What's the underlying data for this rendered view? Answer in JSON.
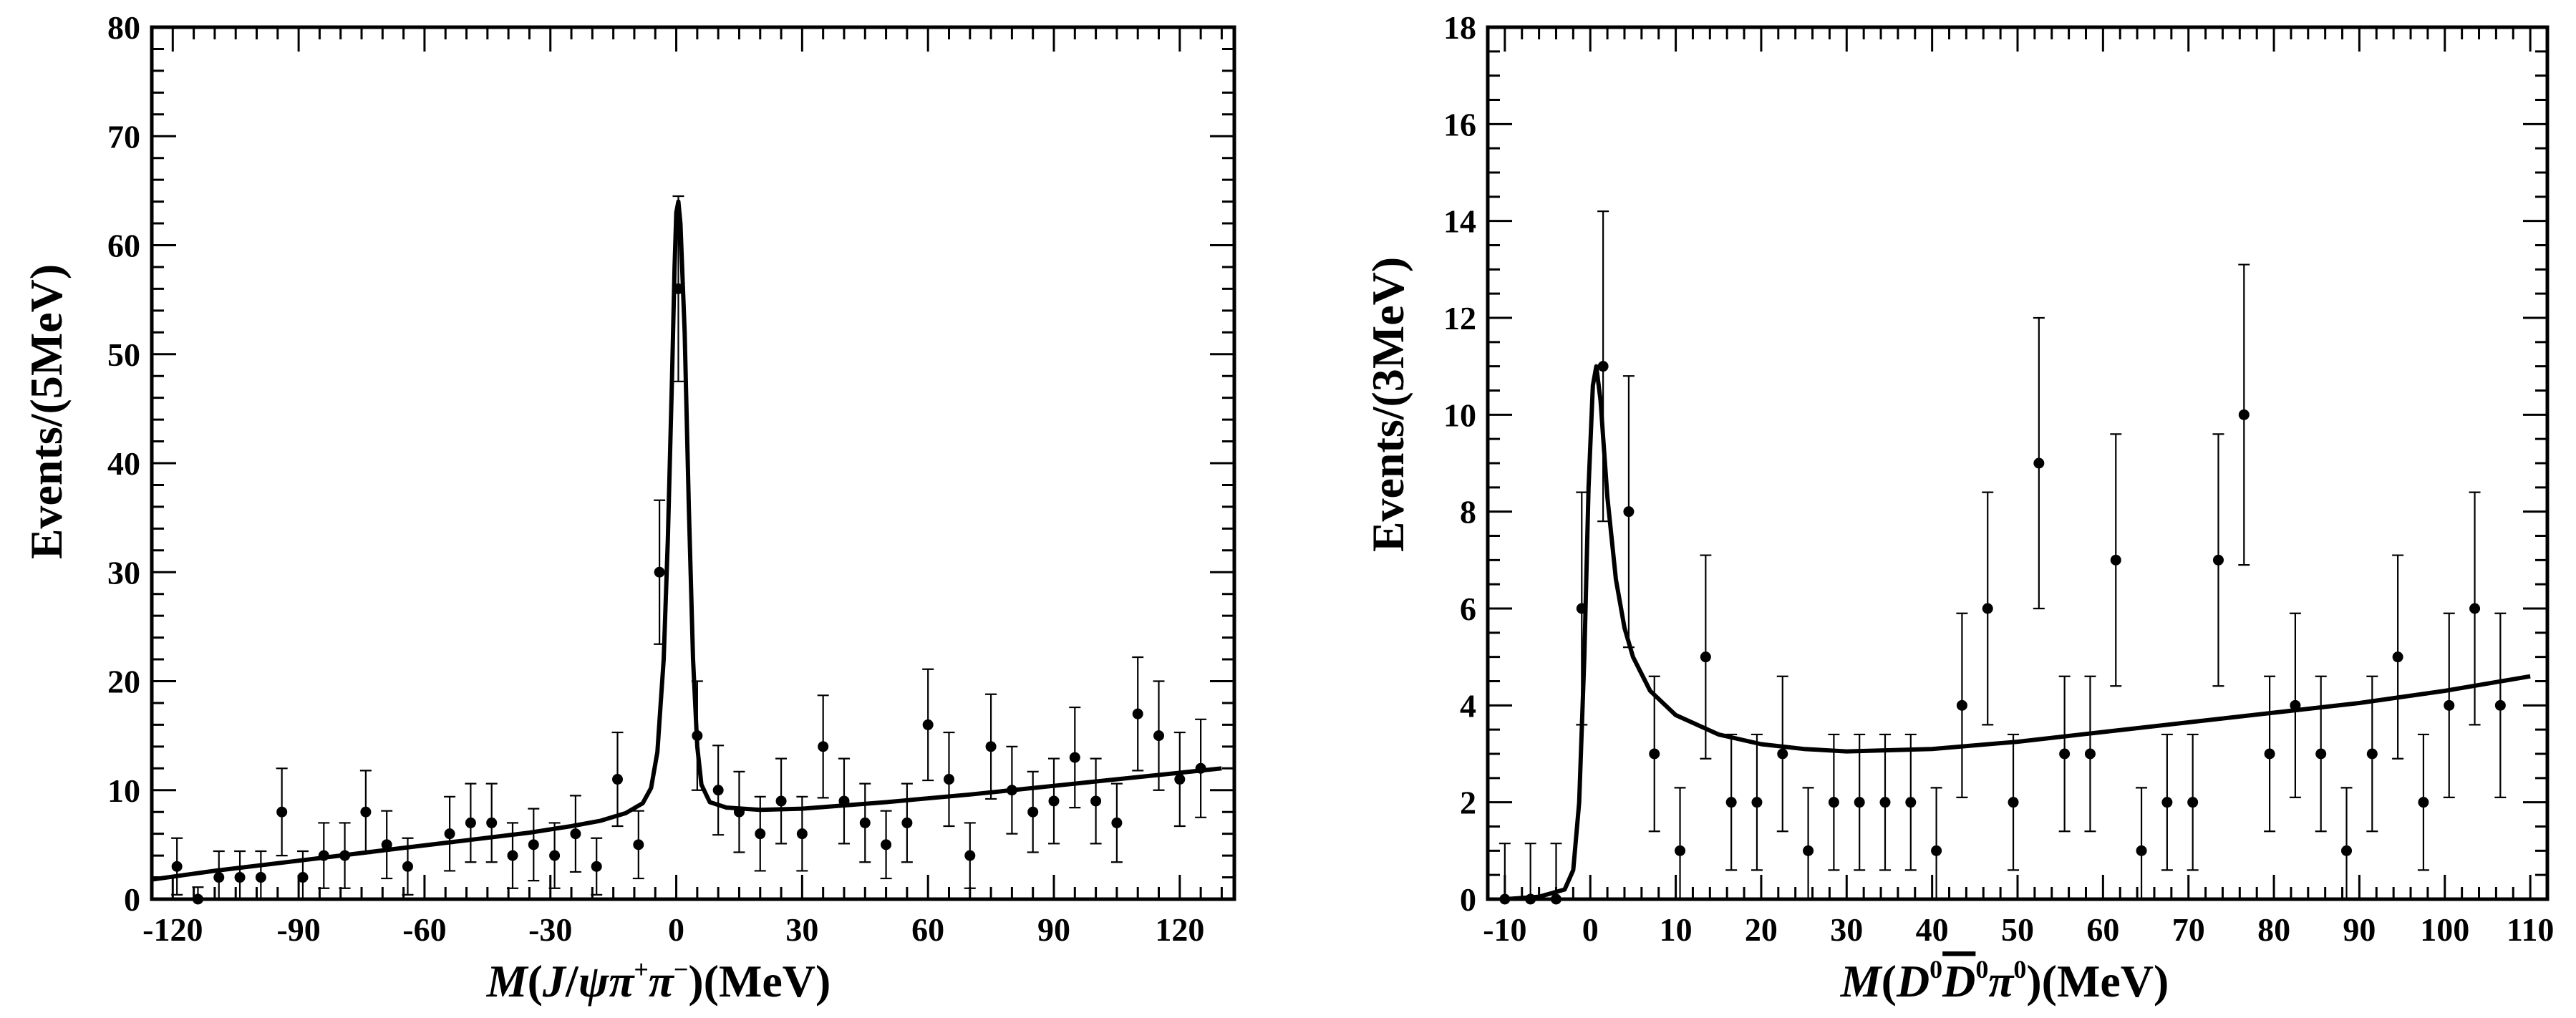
{
  "chart_data": [
    {
      "type": "scatter",
      "title": "",
      "ylabel": "Events/(5MeV)",
      "xlabel_parts": {
        "M": "M",
        "open": "(",
        "J": "J",
        "slash": "/",
        "psi": "ψ",
        "pi1": "π",
        "sup1": "+",
        "pi2": "π",
        "sup2": "−",
        "close": ")",
        "unit": "(MeV)"
      },
      "xlim": [
        -125,
        133
      ],
      "ylim": [
        0,
        80
      ],
      "x_ticks": [
        -120,
        -90,
        -60,
        -30,
        0,
        30,
        60,
        90,
        120
      ],
      "x_tick_labels": [
        "-120",
        "-90",
        "-60",
        "-30",
        "0",
        "30",
        "60",
        "90",
        "120"
      ],
      "y_ticks": [
        0,
        10,
        20,
        30,
        40,
        50,
        60,
        70,
        80
      ],
      "y_tick_labels": [
        "0",
        "10",
        "20",
        "30",
        "40",
        "50",
        "60",
        "70",
        "80"
      ],
      "grid": false,
      "points": [
        {
          "x": -119,
          "y": 3,
          "err": 2.6
        },
        {
          "x": -114,
          "y": 0,
          "err": 1.1
        },
        {
          "x": -109,
          "y": 2,
          "err": 2.4
        },
        {
          "x": -104,
          "y": 2,
          "err": 2.4
        },
        {
          "x": -99,
          "y": 2,
          "err": 2.4
        },
        {
          "x": -94,
          "y": 8,
          "err": 4
        },
        {
          "x": -89,
          "y": 2,
          "err": 2.4
        },
        {
          "x": -84,
          "y": 4,
          "err": 3
        },
        {
          "x": -79,
          "y": 4,
          "err": 3
        },
        {
          "x": -74,
          "y": 8,
          "err": 3.8
        },
        {
          "x": -69,
          "y": 5,
          "err": 3.1
        },
        {
          "x": -64,
          "y": 3,
          "err": 2.6
        },
        {
          "x": -54,
          "y": 6,
          "err": 3.4
        },
        {
          "x": -49,
          "y": 7,
          "err": 3.6
        },
        {
          "x": -44,
          "y": 7,
          "err": 3.6
        },
        {
          "x": -39,
          "y": 4,
          "err": 3
        },
        {
          "x": -34,
          "y": 5,
          "err": 3.3
        },
        {
          "x": -29,
          "y": 4,
          "err": 3
        },
        {
          "x": -24,
          "y": 6,
          "err": 3.5
        },
        {
          "x": -19,
          "y": 3,
          "err": 2.6
        },
        {
          "x": -14,
          "y": 11,
          "err": 4.3
        },
        {
          "x": -9,
          "y": 5,
          "err": 3.1
        },
        {
          "x": -4,
          "y": 30,
          "err": 6.6
        },
        {
          "x": 0.5,
          "y": 56,
          "err": 8.5
        },
        {
          "x": 5,
          "y": 15,
          "err": 5
        },
        {
          "x": 10,
          "y": 10,
          "err": 4.1
        },
        {
          "x": 15,
          "y": 8,
          "err": 3.7
        },
        {
          "x": 20,
          "y": 6,
          "err": 3.4
        },
        {
          "x": 25,
          "y": 9,
          "err": 3.9
        },
        {
          "x": 30,
          "y": 6,
          "err": 3.4
        },
        {
          "x": 35,
          "y": 14,
          "err": 4.7
        },
        {
          "x": 40,
          "y": 9,
          "err": 3.9
        },
        {
          "x": 45,
          "y": 7,
          "err": 3.6
        },
        {
          "x": 50,
          "y": 5,
          "err": 3.1
        },
        {
          "x": 55,
          "y": 7,
          "err": 3.6
        },
        {
          "x": 60,
          "y": 16,
          "err": 5.1
        },
        {
          "x": 65,
          "y": 11,
          "err": 4.3
        },
        {
          "x": 70,
          "y": 4,
          "err": 3
        },
        {
          "x": 75,
          "y": 14,
          "err": 4.8
        },
        {
          "x": 80,
          "y": 10,
          "err": 4
        },
        {
          "x": 85,
          "y": 8,
          "err": 3.7
        },
        {
          "x": 90,
          "y": 9,
          "err": 3.9
        },
        {
          "x": 95,
          "y": 13,
          "err": 4.6
        },
        {
          "x": 100,
          "y": 9,
          "err": 3.9
        },
        {
          "x": 105,
          "y": 7,
          "err": 3.6
        },
        {
          "x": 110,
          "y": 17,
          "err": 5.2
        },
        {
          "x": 115,
          "y": 15,
          "err": 5
        },
        {
          "x": 120,
          "y": 11,
          "err": 4.3
        },
        {
          "x": 125,
          "y": 12,
          "err": 4.5
        }
      ],
      "fit_curve": [
        [
          -125,
          1.8
        ],
        [
          -110,
          2.6
        ],
        [
          -95,
          3.3
        ],
        [
          -80,
          4.0
        ],
        [
          -65,
          4.7
        ],
        [
          -50,
          5.4
        ],
        [
          -35,
          6.1
        ],
        [
          -25,
          6.7
        ],
        [
          -18,
          7.2
        ],
        [
          -12,
          7.9
        ],
        [
          -8,
          8.8
        ],
        [
          -6,
          10.2
        ],
        [
          -4.5,
          13.5
        ],
        [
          -3,
          22
        ],
        [
          -2,
          33
        ],
        [
          -1,
          48
        ],
        [
          -0.4,
          58
        ],
        [
          0,
          63
        ],
        [
          0.5,
          64
        ],
        [
          1,
          62
        ],
        [
          2,
          52
        ],
        [
          3,
          36
        ],
        [
          4,
          22
        ],
        [
          5,
          14
        ],
        [
          6,
          10.5
        ],
        [
          8,
          8.9
        ],
        [
          12,
          8.4
        ],
        [
          20,
          8.2
        ],
        [
          30,
          8.3
        ],
        [
          50,
          8.9
        ],
        [
          70,
          9.6
        ],
        [
          90,
          10.4
        ],
        [
          110,
          11.2
        ],
        [
          130,
          12.0
        ]
      ]
    },
    {
      "type": "scatter",
      "title": "",
      "ylabel": "Events/(3MeV)",
      "xlabel_parts": {
        "M": "M",
        "open": "(",
        "D1": "D",
        "sup1": "0",
        "D2": "D",
        "sup2": "0",
        "pi": "π",
        "sup3": "0",
        "close": ")",
        "unit": "(MeV)"
      },
      "xlim": [
        -12,
        112
      ],
      "ylim": [
        0,
        18
      ],
      "x_ticks": [
        -10,
        0,
        10,
        20,
        30,
        40,
        50,
        60,
        70,
        80,
        90,
        100,
        110
      ],
      "x_tick_labels": [
        "-10",
        "0",
        "10",
        "20",
        "30",
        "40",
        "50",
        "60",
        "70",
        "80",
        "90",
        "100",
        "110"
      ],
      "y_ticks": [
        0,
        2,
        4,
        6,
        8,
        10,
        12,
        14,
        16,
        18
      ],
      "y_tick_labels": [
        "0",
        "2",
        "4",
        "6",
        "8",
        "10",
        "12",
        "14",
        "16",
        "18"
      ],
      "grid": false,
      "points": [
        {
          "x": -10,
          "y": 0,
          "err": 1.15
        },
        {
          "x": -7,
          "y": 0,
          "err": 1.15
        },
        {
          "x": -4,
          "y": 0,
          "err": 1.15
        },
        {
          "x": -1,
          "y": 6,
          "err": 2.4
        },
        {
          "x": 1.5,
          "y": 11,
          "err": 3.2
        },
        {
          "x": 4.5,
          "y": 8,
          "err": 2.8
        },
        {
          "x": 7.5,
          "y": 3,
          "err": 1.6
        },
        {
          "x": 10.5,
          "y": 1,
          "err": 1.3
        },
        {
          "x": 13.5,
          "y": 5,
          "err": 2.1
        },
        {
          "x": 16.5,
          "y": 2,
          "err": 1.4
        },
        {
          "x": 19.5,
          "y": 2,
          "err": 1.4
        },
        {
          "x": 22.5,
          "y": 3,
          "err": 1.6
        },
        {
          "x": 25.5,
          "y": 1,
          "err": 1.3
        },
        {
          "x": 28.5,
          "y": 2,
          "err": 1.4
        },
        {
          "x": 31.5,
          "y": 2,
          "err": 1.4
        },
        {
          "x": 34.5,
          "y": 2,
          "err": 1.4
        },
        {
          "x": 37.5,
          "y": 2,
          "err": 1.4
        },
        {
          "x": 40.5,
          "y": 1,
          "err": 1.3
        },
        {
          "x": 43.5,
          "y": 4,
          "err": 1.9
        },
        {
          "x": 46.5,
          "y": 6,
          "err": 2.4
        },
        {
          "x": 49.5,
          "y": 2,
          "err": 1.4
        },
        {
          "x": 52.5,
          "y": 9,
          "err": 3.0
        },
        {
          "x": 55.5,
          "y": 3,
          "err": 1.6
        },
        {
          "x": 58.5,
          "y": 3,
          "err": 1.6
        },
        {
          "x": 61.5,
          "y": 7,
          "err": 2.6
        },
        {
          "x": 64.5,
          "y": 1,
          "err": 1.3
        },
        {
          "x": 67.5,
          "y": 2,
          "err": 1.4
        },
        {
          "x": 70.5,
          "y": 2,
          "err": 1.4
        },
        {
          "x": 73.5,
          "y": 7,
          "err": 2.6
        },
        {
          "x": 76.5,
          "y": 10,
          "err": 3.1
        },
        {
          "x": 79.5,
          "y": 3,
          "err": 1.6
        },
        {
          "x": 82.5,
          "y": 4,
          "err": 1.9
        },
        {
          "x": 85.5,
          "y": 3,
          "err": 1.6
        },
        {
          "x": 88.5,
          "y": 1,
          "err": 1.3
        },
        {
          "x": 91.5,
          "y": 3,
          "err": 1.6
        },
        {
          "x": 94.5,
          "y": 5,
          "err": 2.1
        },
        {
          "x": 97.5,
          "y": 2,
          "err": 1.4
        },
        {
          "x": 100.5,
          "y": 4,
          "err": 1.9
        },
        {
          "x": 103.5,
          "y": 6,
          "err": 2.4
        },
        {
          "x": 106.5,
          "y": 4,
          "err": 1.9
        }
      ],
      "fit_curve": [
        [
          -10,
          0
        ],
        [
          -6,
          0.05
        ],
        [
          -3,
          0.2
        ],
        [
          -2,
          0.6
        ],
        [
          -1.3,
          2.0
        ],
        [
          -0.7,
          5.0
        ],
        [
          -0.2,
          8.5
        ],
        [
          0.3,
          10.6
        ],
        [
          0.7,
          11.0
        ],
        [
          1.2,
          10.3
        ],
        [
          2,
          8.3
        ],
        [
          3,
          6.6
        ],
        [
          4,
          5.6
        ],
        [
          5,
          5.0
        ],
        [
          7,
          4.3
        ],
        [
          10,
          3.8
        ],
        [
          15,
          3.4
        ],
        [
          20,
          3.2
        ],
        [
          25,
          3.1
        ],
        [
          30,
          3.05
        ],
        [
          40,
          3.1
        ],
        [
          50,
          3.25
        ],
        [
          60,
          3.45
        ],
        [
          70,
          3.65
        ],
        [
          80,
          3.85
        ],
        [
          90,
          4.05
        ],
        [
          100,
          4.3
        ],
        [
          110,
          4.6
        ]
      ]
    }
  ]
}
